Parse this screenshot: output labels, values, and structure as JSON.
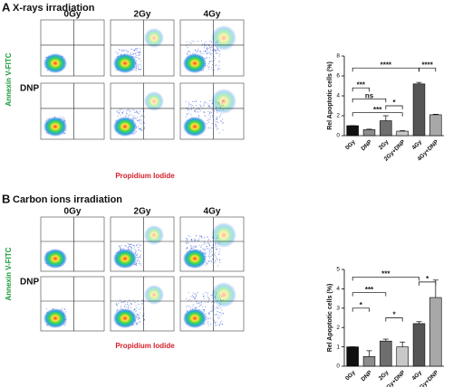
{
  "panels": [
    {
      "letter": "A",
      "title": "X-rays irradiation",
      "columns": [
        "0Gy",
        "2Gy",
        "4Gy"
      ],
      "row_label": "DNP",
      "y_label": "Annexin V-FITC",
      "x_label": "Propidium Iodide",
      "chart_data": {
        "type": "bar",
        "ylabel": "Rel Apoptotic cells (%)",
        "categories": [
          "0Gy",
          "DNP",
          "2Gy",
          "2Gy+DNP",
          "4Gy",
          "4Gy+DNP"
        ],
        "values": [
          1.0,
          0.6,
          1.5,
          0.45,
          5.2,
          2.1
        ],
        "errors": [
          0,
          0.05,
          0.5,
          0.05,
          0.15,
          0.05
        ],
        "colors": [
          "#111111",
          "#8c8c8c",
          "#6e6e6e",
          "#c8c8c8",
          "#555555",
          "#a8a8a8"
        ],
        "ylim": [
          0,
          8
        ],
        "yticks": [
          0,
          2,
          4,
          6,
          8
        ],
        "significance": [
          "****",
          "****",
          "***",
          "ns",
          "*",
          "***"
        ]
      }
    },
    {
      "letter": "B",
      "title": "Carbon ions irradiation",
      "columns": [
        "0Gy",
        "2Gy",
        "4Gy"
      ],
      "row_label": "DNP",
      "y_label": "Annexin V-FITC",
      "x_label": "Propidium Iodide",
      "chart_data": {
        "type": "bar",
        "ylabel": "Rel Apoptotic cells (%)",
        "categories": [
          "0Gy",
          "DNP",
          "2Gy",
          "2Gy+DNP",
          "4Gy",
          "4Gy+DNP"
        ],
        "values": [
          1.0,
          0.5,
          1.3,
          1.0,
          2.2,
          3.55
        ],
        "errors": [
          0,
          0.3,
          0.1,
          0.25,
          0.1,
          0.9
        ],
        "colors": [
          "#111111",
          "#8c8c8c",
          "#6e6e6e",
          "#c8c8c8",
          "#555555",
          "#a8a8a8"
        ],
        "ylim": [
          0,
          5
        ],
        "yticks": [
          0,
          1,
          2,
          3,
          4,
          5
        ],
        "significance": [
          "***",
          "***",
          "*",
          "*",
          "*"
        ]
      }
    }
  ]
}
